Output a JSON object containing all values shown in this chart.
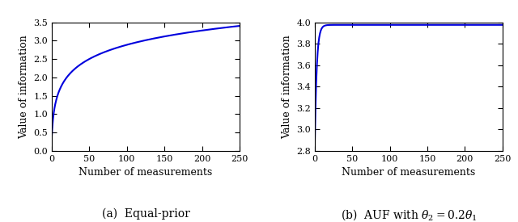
{
  "subplot1": {
    "title": "(a)  Equal-prior",
    "xlabel": "Number of measurements",
    "ylabel": "Value of information",
    "xlim": [
      0,
      250
    ],
    "ylim": [
      0,
      3.5
    ],
    "yticks": [
      0,
      0.5,
      1.0,
      1.5,
      2.0,
      2.5,
      3.0,
      3.5
    ],
    "xticks": [
      0,
      50,
      100,
      150,
      200,
      250
    ],
    "line_color": "#0000dd",
    "log_k": 0.8,
    "log_A_target": 3.0,
    "start_val": 0.4
  },
  "subplot2": {
    "title": "(b)  AUF with $\\theta_2 = 0.2\\theta_1$",
    "xlabel": "Number of measurements",
    "ylabel": "Value of information",
    "xlim": [
      0,
      250
    ],
    "ylim": [
      2.8,
      4.0
    ],
    "yticks": [
      2.8,
      3.0,
      3.2,
      3.4,
      3.6,
      3.8,
      4.0
    ],
    "xticks": [
      0,
      50,
      100,
      150,
      200,
      250
    ],
    "line_color": "#0000dd",
    "start_val": 2.82,
    "asymptote": 3.975,
    "rate": 0.38
  },
  "background_color": "#ffffff",
  "line_width": 1.5,
  "tick_label_size": 8,
  "axis_label_size": 9,
  "caption_size": 10
}
